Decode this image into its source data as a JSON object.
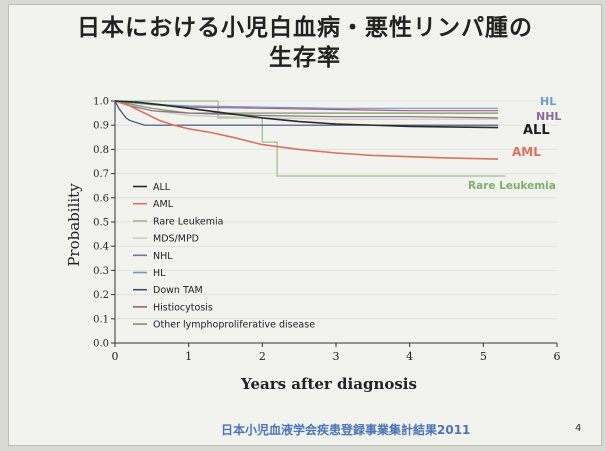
{
  "slide": {
    "title_line1": "日本における小児白血病・悪性リンパ腫の",
    "title_line2": "生存率",
    "footer": "日本小児血液学会疾患登録事業集計結果2011",
    "page_number": "4"
  },
  "chart_data": {
    "type": "line",
    "xlabel": "Years after diagnosis",
    "ylabel": "Probability",
    "xlim": [
      0,
      6
    ],
    "ylim": [
      0,
      1.0
    ],
    "xticks": [
      "0",
      "1",
      "2",
      "3",
      "4",
      "5",
      "6"
    ],
    "yticks": [
      "0.0",
      "0.1",
      "0.2",
      "0.3",
      "0.4",
      "0.5",
      "0.6",
      "0.7",
      "0.8",
      "0.9",
      "1.0"
    ],
    "legend_position": "left",
    "legend": [
      "ALL",
      "AML",
      "Rare Leukemia",
      "MDS/MPD",
      "NHL",
      "HL",
      "Down TAM",
      "Histiocytosis",
      "Other lymphoproliferative disease"
    ],
    "colors": {
      "ALL": "#2b2b2b",
      "AML": "#d9735e",
      "Rare Leukemia": "#9cbf8a",
      "MDS/MPD": "#c7d0b0",
      "NHL": "#8a6a9a",
      "HL": "#6f9ad1",
      "Down TAM": "#3c4f7a",
      "Histiocytosis": "#a85a7a",
      "Other lymphoproliferative disease": "#7a9a5a"
    },
    "curve_labels": [
      {
        "text": "HL",
        "series": "HL"
      },
      {
        "text": "NHL",
        "series": "NHL"
      },
      {
        "text": "ALL",
        "series": "ALL"
      },
      {
        "text": "AML",
        "series": "AML"
      },
      {
        "text": "Rare Leukemia",
        "series": "Rare Leukemia"
      }
    ],
    "series": [
      {
        "name": "HL",
        "x": [
          0,
          0.3,
          0.6,
          1,
          2,
          3,
          4,
          5.2
        ],
        "y": [
          1.0,
          0.99,
          0.985,
          0.98,
          0.975,
          0.97,
          0.97,
          0.97
        ]
      },
      {
        "name": "NHL",
        "x": [
          0,
          0.2,
          0.5,
          1,
          2,
          3,
          4,
          5.2
        ],
        "y": [
          1.0,
          0.98,
          0.96,
          0.95,
          0.94,
          0.935,
          0.935,
          0.93
        ]
      },
      {
        "name": "ALL",
        "x": [
          0,
          0.3,
          0.6,
          1,
          1.5,
          2,
          2.5,
          3,
          4,
          5.2
        ],
        "y": [
          1.0,
          0.995,
          0.985,
          0.97,
          0.95,
          0.93,
          0.915,
          0.905,
          0.895,
          0.89
        ]
      },
      {
        "name": "AML",
        "x": [
          0,
          0.2,
          0.4,
          0.6,
          0.8,
          1,
          1.3,
          1.6,
          2,
          2.5,
          3,
          3.5,
          4,
          4.5,
          5.2
        ],
        "y": [
          1.0,
          0.98,
          0.95,
          0.92,
          0.9,
          0.885,
          0.87,
          0.85,
          0.82,
          0.8,
          0.785,
          0.775,
          0.77,
          0.765,
          0.76
        ]
      },
      {
        "name": "Rare Leukemia",
        "x": [
          0,
          1.4,
          1.4,
          2.0,
          2.0,
          2.2,
          2.2,
          5.3
        ],
        "y": [
          1.0,
          1.0,
          0.93,
          0.93,
          0.83,
          0.83,
          0.69,
          0.69
        ]
      },
      {
        "name": "MDS/MPD",
        "x": [
          0,
          0.5,
          1,
          2,
          3,
          4,
          5.2
        ],
        "y": [
          1.0,
          0.96,
          0.94,
          0.93,
          0.925,
          0.925,
          0.925
        ]
      },
      {
        "name": "Down TAM",
        "x": [
          0,
          0.05,
          0.1,
          0.15,
          0.2,
          0.3,
          0.4,
          5.2
        ],
        "y": [
          1.0,
          0.97,
          0.95,
          0.93,
          0.92,
          0.91,
          0.9,
          0.9
        ]
      },
      {
        "name": "Histiocytosis",
        "x": [
          0,
          0.5,
          1,
          2,
          3,
          4,
          5.2
        ],
        "y": [
          1.0,
          0.985,
          0.975,
          0.97,
          0.965,
          0.96,
          0.96
        ]
      },
      {
        "name": "Other lymphoproliferative disease",
        "x": [
          0,
          0.5,
          1,
          2,
          5.2
        ],
        "y": [
          1.0,
          0.97,
          0.95,
          0.95,
          0.95
        ]
      }
    ]
  }
}
